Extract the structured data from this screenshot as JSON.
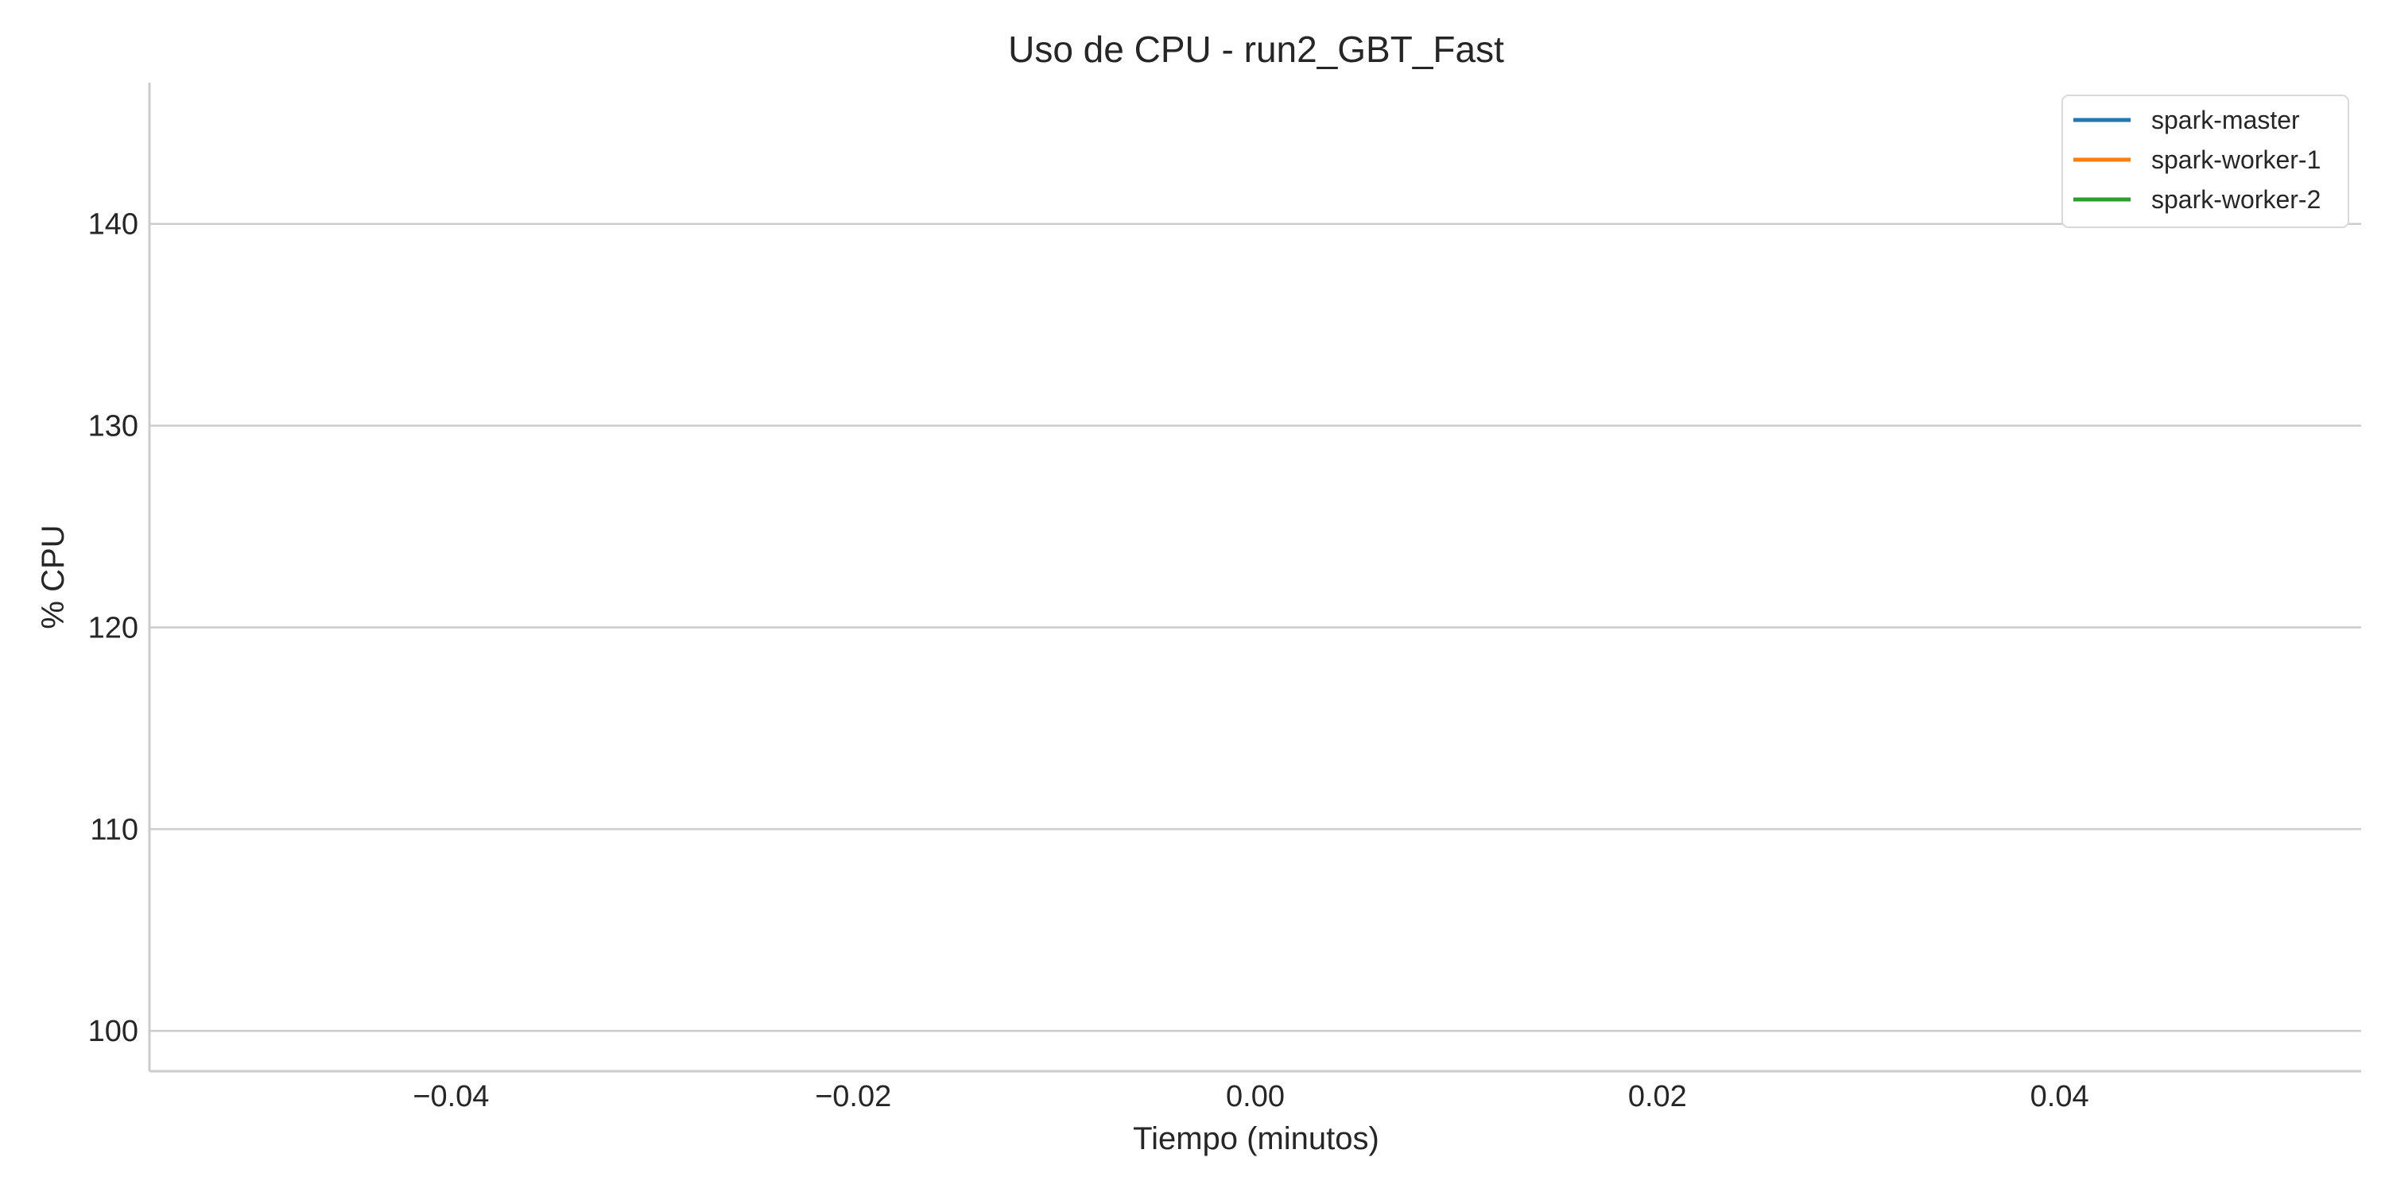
{
  "chart_data": {
    "type": "line",
    "title": "Uso de CPU - run2_GBT_Fast",
    "xlabel": "Tiempo (minutos)",
    "ylabel": "% CPU",
    "xlim": [
      -0.055,
      0.055
    ],
    "ylim": [
      98,
      147
    ],
    "x_scale": "linear",
    "y_scale": "linear",
    "xticks": [
      -0.04,
      -0.02,
      0.0,
      0.02,
      0.04
    ],
    "xtick_labels": [
      "−0.04",
      "−0.02",
      "0.00",
      "0.02",
      "0.04"
    ],
    "yticks": [
      100,
      110,
      120,
      130,
      140
    ],
    "ytick_labels": [
      "100",
      "110",
      "120",
      "130",
      "140"
    ],
    "grid": "horizontal",
    "legend_position": "top-right",
    "series": [
      {
        "name": "spark-master",
        "color": "#1f77b4",
        "x": [],
        "y": []
      },
      {
        "name": "spark-worker-1",
        "color": "#ff7f0e",
        "x": [],
        "y": []
      },
      {
        "name": "spark-worker-2",
        "color": "#2ca02c",
        "x": [],
        "y": []
      }
    ]
  }
}
